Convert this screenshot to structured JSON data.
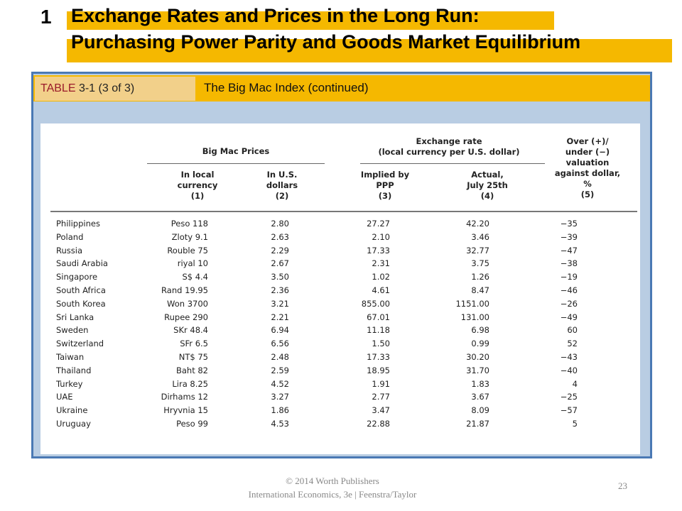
{
  "slide": {
    "number": "1",
    "title_line1": "Exchange Rates and Prices in the Long Run:",
    "title_line2": "Purchasing Power Parity and Goods Market Equilibrium"
  },
  "table_label": {
    "table_word": "TABLE",
    "table_id": "3-1 (3 of 3)",
    "caption": "The Big Mac Index (continued)"
  },
  "headers": {
    "group_prices": "Big Mac Prices",
    "group_exchange": [
      "Exchange rate",
      "(local currency per U.S. dollar)"
    ],
    "col1": [
      "In local",
      "currency",
      "(1)"
    ],
    "col2": [
      "In U.S.",
      "dollars",
      "(2)"
    ],
    "col3": [
      "Implied by",
      "PPP",
      "(3)"
    ],
    "col4": [
      "Actual,",
      "July 25th",
      "(4)"
    ],
    "col5": [
      "Over (+)/",
      "under (−)",
      "valuation",
      "against dollar,",
      "%",
      "(5)"
    ]
  },
  "rows": [
    {
      "country": "Philippines",
      "local": "Peso 118",
      "usd": "2.80",
      "ppp": "27.27",
      "actual": "42.20",
      "valuation": "−35"
    },
    {
      "country": "Poland",
      "local": "Zloty 9.1",
      "usd": "2.63",
      "ppp": "2.10",
      "actual": "3.46",
      "valuation": "−39"
    },
    {
      "country": "Russia",
      "local": "Rouble 75",
      "usd": "2.29",
      "ppp": "17.33",
      "actual": "32.77",
      "valuation": "−47"
    },
    {
      "country": "Saudi Arabia",
      "local": "riyal 10",
      "usd": "2.67",
      "ppp": "2.31",
      "actual": "3.75",
      "valuation": "−38"
    },
    {
      "country": "Singapore",
      "local": "S$ 4.4",
      "usd": "3.50",
      "ppp": "1.02",
      "actual": "1.26",
      "valuation": "−19"
    },
    {
      "country": "South Africa",
      "local": "Rand 19.95",
      "usd": "2.36",
      "ppp": "4.61",
      "actual": "8.47",
      "valuation": "−46"
    },
    {
      "country": "South Korea",
      "local": "Won 3700",
      "usd": "3.21",
      "ppp": "855.00",
      "actual": "1151.00",
      "valuation": "−26"
    },
    {
      "country": "Sri Lanka",
      "local": "Rupee 290",
      "usd": "2.21",
      "ppp": "67.01",
      "actual": "131.00",
      "valuation": "−49"
    },
    {
      "country": "Sweden",
      "local": "SKr 48.4",
      "usd": "6.94",
      "ppp": "11.18",
      "actual": "6.98",
      "valuation": "60"
    },
    {
      "country": "Switzerland",
      "local": "SFr 6.5",
      "usd": "6.56",
      "ppp": "1.50",
      "actual": "0.99",
      "valuation": "52"
    },
    {
      "country": "Taiwan",
      "local": "NT$ 75",
      "usd": "2.48",
      "ppp": "17.33",
      "actual": "30.20",
      "valuation": "−43"
    },
    {
      "country": "Thailand",
      "local": "Baht 82",
      "usd": "2.59",
      "ppp": "18.95",
      "actual": "31.70",
      "valuation": "−40"
    },
    {
      "country": "Turkey",
      "local": "Lira 8.25",
      "usd": "4.52",
      "ppp": "1.91",
      "actual": "1.83",
      "valuation": "4"
    },
    {
      "country": "UAE",
      "local": "Dirhams 12",
      "usd": "3.27",
      "ppp": "2.77",
      "actual": "3.67",
      "valuation": "−25"
    },
    {
      "country": "Ukraine",
      "local": "Hryvnia 15",
      "usd": "1.86",
      "ppp": "3.47",
      "actual": "8.09",
      "valuation": "−57"
    },
    {
      "country": "Uruguay",
      "local": "Peso 99",
      "usd": "4.53",
      "ppp": "22.88",
      "actual": "21.87",
      "valuation": "5"
    }
  ],
  "footer": {
    "line1": "© 2014 Worth Publishers",
    "line2": "International Economics, 3e  |  Feenstra/Taylor",
    "page": "23"
  },
  "colors": {
    "accent_yellow": "#f5b800",
    "panel_blue": "#b9cde3",
    "panel_border": "#4a79b4",
    "label_tan": "#f2d08a"
  }
}
